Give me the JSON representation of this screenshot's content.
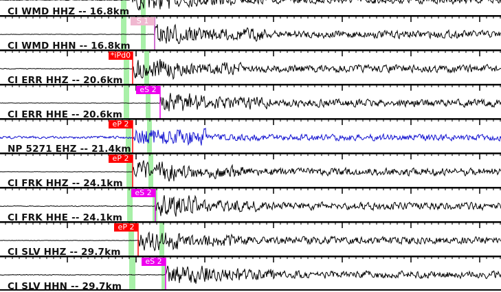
{
  "colors": {
    "trace": "#000000",
    "trace_alt": "#1010d0",
    "p_pick": "#ff0000",
    "s_pick": "#ee00ee",
    "s_pick_pale": "#f0b8d0",
    "window": "#a8f0a8",
    "separator": "#000000"
  },
  "channels": [
    {
      "label": "CI WMD HHZ -- 16.8km",
      "pick": null
    },
    {
      "label": "CI WMD HHN -- 16.8km",
      "pick": {
        "text": "S 1",
        "type": "s-pale"
      }
    },
    {
      "label": "CI ERR HHZ -- 20.6km",
      "pick": {
        "text": "*iPd0",
        "type": "p"
      }
    },
    {
      "label": "CI ERR HHE -- 20.6km",
      "pick": {
        "text": "eS 2",
        "type": "s"
      }
    },
    {
      "label": "NP 5271 EHZ -- 21.4km",
      "pick": {
        "text": "eP 2",
        "type": "p"
      }
    },
    {
      "label": "CI FRK HHZ -- 24.1km",
      "pick": {
        "text": "eP 2",
        "type": "p"
      }
    },
    {
      "label": "CI FRK HHE -- 24.1km",
      "pick": {
        "text": "eS 2",
        "type": "s"
      }
    },
    {
      "label": "CI SLV HHZ -- 29.7km",
      "pick": {
        "text": "eP 2",
        "type": "p"
      }
    },
    {
      "label": "CI SLV HHN -- 29.7km",
      "pick": {
        "text": "eS 2",
        "type": "s"
      }
    }
  ]
}
